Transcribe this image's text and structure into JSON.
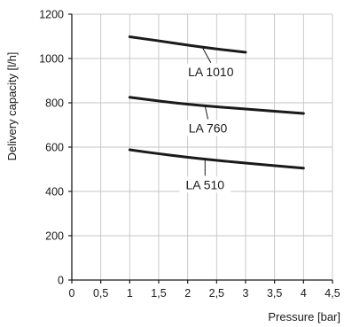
{
  "chart_data": {
    "type": "line",
    "xlabel": "Pressure [bar]",
    "ylabel": "Delivery capacity [l/h]",
    "xlim": [
      0,
      4.5
    ],
    "ylim": [
      0,
      1200
    ],
    "x_ticks": [
      0,
      0.5,
      1,
      1.5,
      2,
      2.5,
      3,
      3.5,
      4,
      4.5
    ],
    "x_tick_labels": [
      "0",
      "0,5",
      "1",
      "1,5",
      "2",
      "2,5",
      "3",
      "3,5",
      "4",
      "4,5"
    ],
    "y_ticks": [
      0,
      200,
      400,
      600,
      800,
      1000,
      1200
    ],
    "y_tick_labels": [
      "0",
      "200",
      "400",
      "600",
      "800",
      "1000",
      "1200"
    ],
    "grid": true,
    "series": [
      {
        "name": "LA 1010",
        "x": [
          1,
          1.5,
          2,
          2.5,
          3
        ],
        "y": [
          1098,
          1080,
          1060,
          1043,
          1028
        ],
        "label_anchor": {
          "x": 2.25,
          "y": 1052
        },
        "label_pos": {
          "x": 2.4,
          "y": 925
        }
      },
      {
        "name": "LA 760",
        "x": [
          1,
          1.5,
          2,
          2.5,
          3,
          3.5,
          4
        ],
        "y": [
          825,
          808,
          793,
          782,
          772,
          762,
          752
        ],
        "label_anchor": {
          "x": 2.3,
          "y": 786
        },
        "label_pos": {
          "x": 2.35,
          "y": 670
        }
      },
      {
        "name": "LA 510",
        "x": [
          1,
          1.5,
          2,
          2.5,
          3,
          3.5,
          4
        ],
        "y": [
          588,
          570,
          554,
          540,
          528,
          516,
          505
        ],
        "label_anchor": {
          "x": 2.3,
          "y": 547
        },
        "label_pos": {
          "x": 2.3,
          "y": 415
        }
      }
    ]
  }
}
